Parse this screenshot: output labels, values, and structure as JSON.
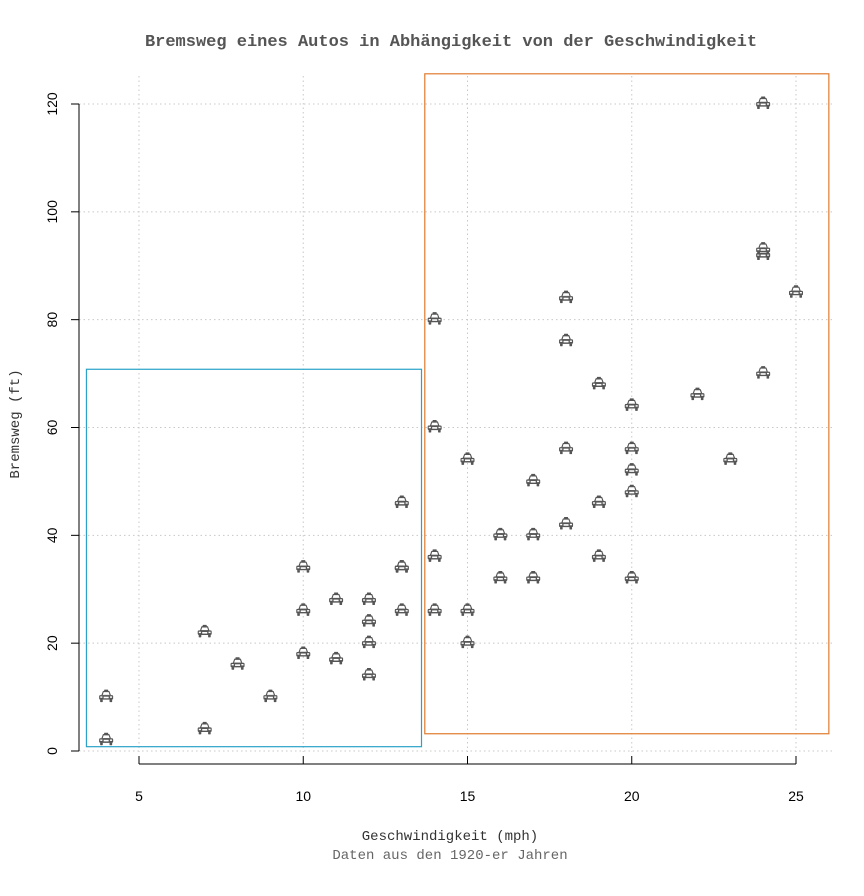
{
  "chart_data": {
    "type": "scatter",
    "title": "Bremsweg eines Autos in Abhängigkeit von der Geschwindigkeit",
    "xlabel": "Geschwindigkeit (mph)",
    "ylabel": "Bremsweg (ft)",
    "subtitle": "Daten aus den 1920-er Jahren",
    "xlim": [
      3.2,
      26
    ],
    "ylim": [
      0,
      122
    ],
    "x_ticks": [
      5,
      10,
      15,
      20,
      25
    ],
    "y_ticks": [
      0,
      20,
      40,
      60,
      80,
      100,
      120
    ],
    "grid": true,
    "grid_style": "dotted",
    "marker": "car-icon",
    "marker_color": "#555555",
    "points": [
      {
        "x": 4,
        "y": 2
      },
      {
        "x": 4,
        "y": 10
      },
      {
        "x": 7,
        "y": 4
      },
      {
        "x": 7,
        "y": 22
      },
      {
        "x": 8,
        "y": 16
      },
      {
        "x": 9,
        "y": 10
      },
      {
        "x": 10,
        "y": 18
      },
      {
        "x": 10,
        "y": 26
      },
      {
        "x": 10,
        "y": 34
      },
      {
        "x": 11,
        "y": 17
      },
      {
        "x": 11,
        "y": 28
      },
      {
        "x": 12,
        "y": 14
      },
      {
        "x": 12,
        "y": 20
      },
      {
        "x": 12,
        "y": 24
      },
      {
        "x": 12,
        "y": 28
      },
      {
        "x": 13,
        "y": 26
      },
      {
        "x": 13,
        "y": 34
      },
      {
        "x": 13,
        "y": 34
      },
      {
        "x": 13,
        "y": 46
      },
      {
        "x": 14,
        "y": 26
      },
      {
        "x": 14,
        "y": 36
      },
      {
        "x": 14,
        "y": 60
      },
      {
        "x": 14,
        "y": 80
      },
      {
        "x": 15,
        "y": 20
      },
      {
        "x": 15,
        "y": 26
      },
      {
        "x": 15,
        "y": 54
      },
      {
        "x": 16,
        "y": 32
      },
      {
        "x": 16,
        "y": 40
      },
      {
        "x": 17,
        "y": 32
      },
      {
        "x": 17,
        "y": 40
      },
      {
        "x": 17,
        "y": 50
      },
      {
        "x": 18,
        "y": 42
      },
      {
        "x": 18,
        "y": 56
      },
      {
        "x": 18,
        "y": 76
      },
      {
        "x": 18,
        "y": 84
      },
      {
        "x": 19,
        "y": 36
      },
      {
        "x": 19,
        "y": 46
      },
      {
        "x": 19,
        "y": 68
      },
      {
        "x": 20,
        "y": 32
      },
      {
        "x": 20,
        "y": 48
      },
      {
        "x": 20,
        "y": 52
      },
      {
        "x": 20,
        "y": 56
      },
      {
        "x": 20,
        "y": 64
      },
      {
        "x": 22,
        "y": 66
      },
      {
        "x": 23,
        "y": 54
      },
      {
        "x": 24,
        "y": 70
      },
      {
        "x": 24,
        "y": 92
      },
      {
        "x": 24,
        "y": 93
      },
      {
        "x": 24,
        "y": 120
      },
      {
        "x": 25,
        "y": 85
      }
    ],
    "highlight_boxes": [
      {
        "name": "low-speed-region",
        "x_range": [
          3.4,
          13.6
        ],
        "y_range": [
          0.8,
          70.8
        ],
        "color": "#29a3c7"
      },
      {
        "name": "high-speed-region",
        "x_range": [
          13.7,
          26
        ],
        "y_range": [
          3.2,
          125.6
        ],
        "color": "#e07b2e"
      }
    ]
  }
}
